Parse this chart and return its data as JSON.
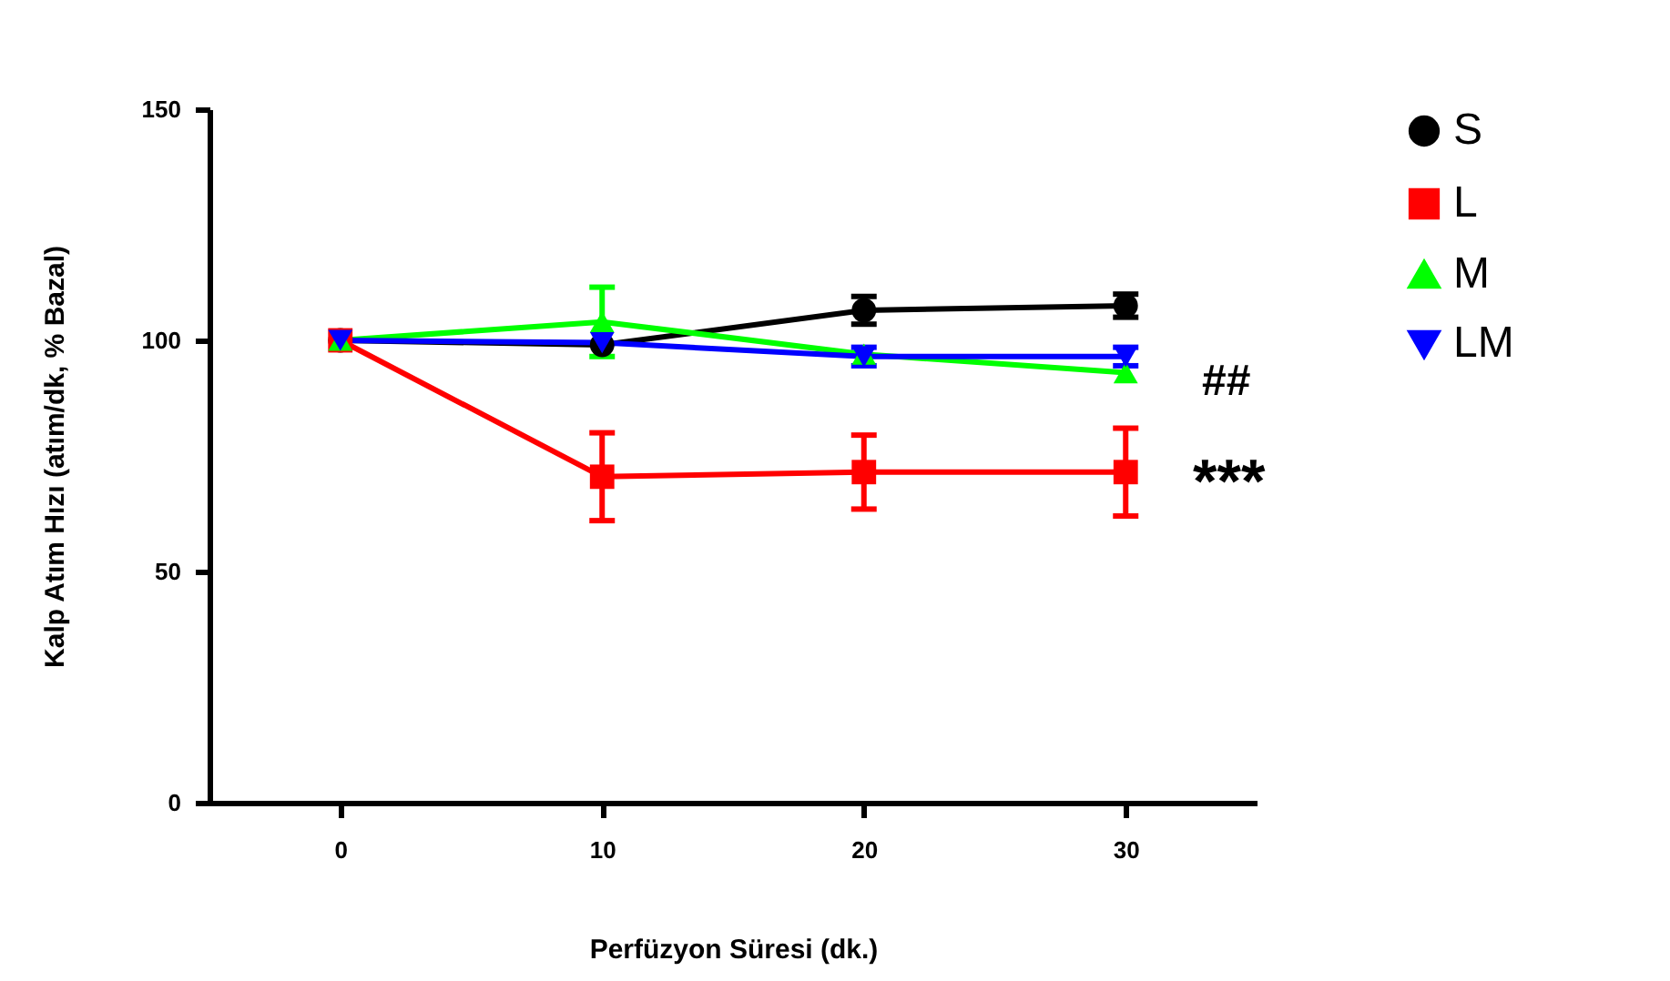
{
  "chart_data": {
    "type": "line",
    "xlabel": "Perfüzyon Süresi (dk.)",
    "ylabel": "Kalp Atım Hızı (atım/dk, % Bazal)",
    "x": [
      0,
      10,
      20,
      30
    ],
    "xlim": [
      -5,
      35
    ],
    "xticks": [
      0,
      10,
      20,
      30
    ],
    "ylim": [
      0,
      150
    ],
    "yticks": [
      0,
      50,
      100,
      150
    ],
    "grid": false,
    "legend": "right",
    "series": [
      {
        "name": "S",
        "color": "#000000",
        "marker": "circle",
        "values": [
          100,
          99,
          106.5,
          107.5
        ],
        "errors": [
          null,
          null,
          3,
          2.5
        ]
      },
      {
        "name": "L",
        "color": "#ff0000",
        "marker": "square",
        "values": [
          100,
          70.5,
          71.5,
          71.5
        ],
        "errors": [
          null,
          9.5,
          8,
          9.5
        ]
      },
      {
        "name": "M",
        "color": "#00ff00",
        "marker": "triangle",
        "values": [
          100,
          104,
          97,
          93
        ],
        "errors": [
          null,
          7.5,
          null,
          null
        ]
      },
      {
        "name": "LM",
        "color": "#0000ff",
        "marker": "triangle-down",
        "values": [
          100,
          99.5,
          96.5,
          96.5
        ],
        "errors": [
          null,
          null,
          2,
          2
        ]
      }
    ],
    "annotations": [
      "##",
      "***"
    ]
  }
}
